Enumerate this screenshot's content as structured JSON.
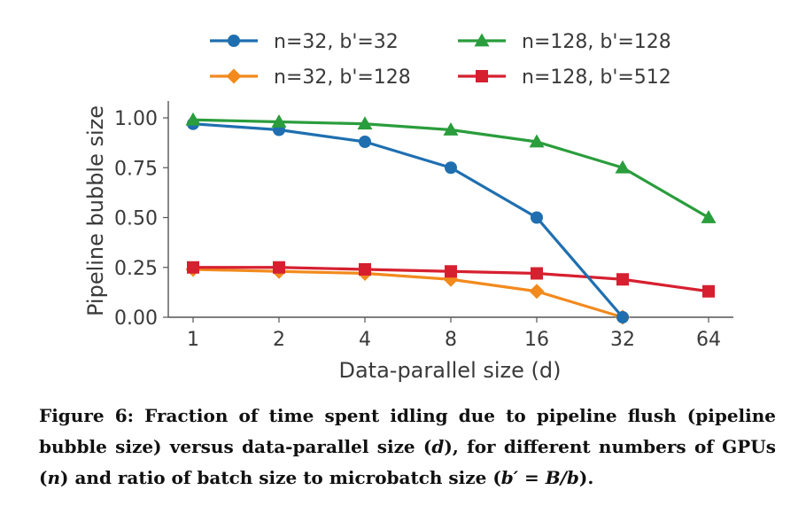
{
  "chart_data": {
    "type": "line",
    "xlabel": "Data-parallel size (d)",
    "ylabel": "Pipeline bubble size",
    "x_ticks": [
      "1",
      "2",
      "4",
      "8",
      "16",
      "32",
      "64"
    ],
    "y_ticks": [
      "0.00",
      "0.25",
      "0.50",
      "0.75",
      "1.00"
    ],
    "ylim": [
      0,
      1.0
    ],
    "x_scale": "log2",
    "grid": false,
    "legend_placement": "top",
    "series": [
      {
        "name": "n=32, b'=32",
        "color": "#1f6fb0",
        "marker": "circle",
        "x": [
          1,
          2,
          4,
          8,
          16,
          32
        ],
        "y": [
          0.97,
          0.94,
          0.88,
          0.75,
          0.5,
          0.0
        ]
      },
      {
        "name": "n=128, b'=128",
        "color": "#2a9d3c",
        "marker": "triangle",
        "x": [
          1,
          2,
          4,
          8,
          16,
          32,
          64
        ],
        "y": [
          0.99,
          0.98,
          0.97,
          0.94,
          0.88,
          0.75,
          0.5
        ]
      },
      {
        "name": "n=32, b'=128",
        "color": "#f28a1d",
        "marker": "diamond",
        "x": [
          1,
          2,
          4,
          8,
          16,
          32
        ],
        "y": [
          0.24,
          0.23,
          0.22,
          0.19,
          0.13,
          0.0
        ]
      },
      {
        "name": "n=128, b'=512",
        "color": "#d62030",
        "marker": "square",
        "x": [
          1,
          2,
          4,
          8,
          16,
          32,
          64
        ],
        "y": [
          0.25,
          0.25,
          0.24,
          0.23,
          0.22,
          0.19,
          0.13
        ]
      }
    ]
  },
  "caption": {
    "prefix": "Figure 6: Fraction of time spent idling due to pipeline flush (pipeline bubble size) versus data-parallel size (",
    "var_d": "d",
    "mid1": "), for different numbers of GPUs (",
    "var_n": "n",
    "mid2": ") and ratio of batch size to microbatch size (",
    "formula": "b′ = B/b",
    "suffix": ")."
  }
}
